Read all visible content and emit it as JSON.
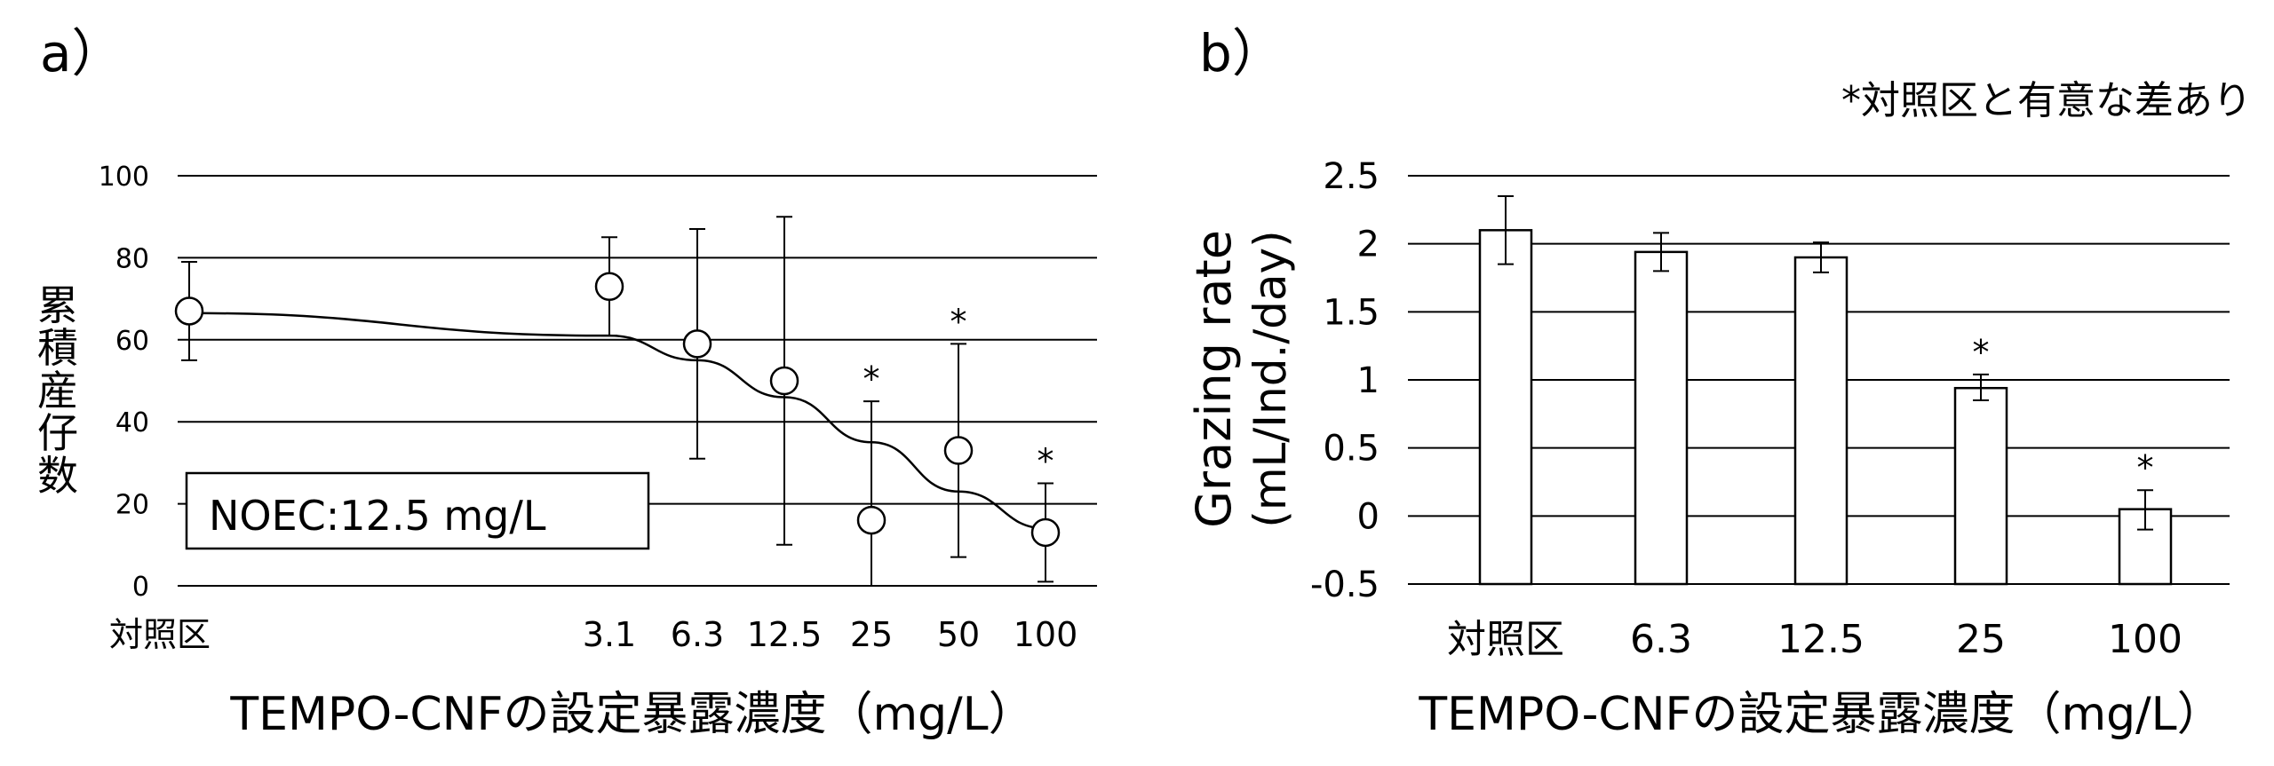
{
  "panels": {
    "a": {
      "label": "a）"
    },
    "b": {
      "label": "b）"
    }
  },
  "significance_note": "*対照区と有意な差あり",
  "chart_data": [
    {
      "type": "scatter",
      "panel": "a",
      "categories": [
        "対照区",
        "3.1",
        "6.3",
        "12.5",
        "25",
        "50",
        "100"
      ],
      "x_scale": "log",
      "ylabel": "累積産仔数",
      "xlabel": "TEMPO-CNFの設定暴露濃度（mg/L）",
      "ylim": [
        0,
        100
      ],
      "yticks": [
        "0",
        "20",
        "40",
        "60",
        "80",
        "100"
      ],
      "grid": true,
      "annotation": "NOEC:12.5 mg/L",
      "series": [
        {
          "values": [
            67,
            73,
            59,
            50,
            16,
            33,
            13
          ],
          "error_low": [
            55,
            61,
            31,
            10,
            0,
            7,
            1
          ],
          "error_high": [
            79,
            85,
            87,
            90,
            45,
            59,
            25
          ],
          "significant": [
            false,
            false,
            false,
            false,
            true,
            true,
            true
          ],
          "marker": "open-circle"
        }
      ],
      "fit_curve": {
        "x": [
          "対照区",
          "3.1",
          "6.3",
          "12.5",
          "25",
          "50",
          "100"
        ],
        "y": [
          66.5,
          61,
          55,
          46,
          35,
          23,
          14
        ]
      }
    },
    {
      "type": "bar",
      "panel": "b",
      "categories": [
        "対照区",
        "6.3",
        "12.5",
        "25",
        "100"
      ],
      "ylabel_line1": "Grazing rate",
      "ylabel_line2": "(mL/Ind./day)",
      "xlabel": "TEMPO-CNFの設定暴露濃度（mg/L）",
      "ylim": [
        -0.5,
        2.5
      ],
      "yticks": [
        "-0.5",
        "0",
        "0.5",
        "1",
        "1.5",
        "2",
        "2.5"
      ],
      "grid": true,
      "series": [
        {
          "values": [
            2.1,
            1.94,
            1.9,
            0.94,
            0.05
          ],
          "error_low": [
            1.85,
            1.8,
            1.79,
            0.85,
            -0.1
          ],
          "error_high": [
            2.35,
            2.08,
            2.01,
            1.04,
            0.19
          ],
          "significant": [
            false,
            false,
            false,
            true,
            true
          ],
          "fill": "#ffffff",
          "stroke": "#000000"
        }
      ]
    }
  ],
  "significance_marker": "*"
}
